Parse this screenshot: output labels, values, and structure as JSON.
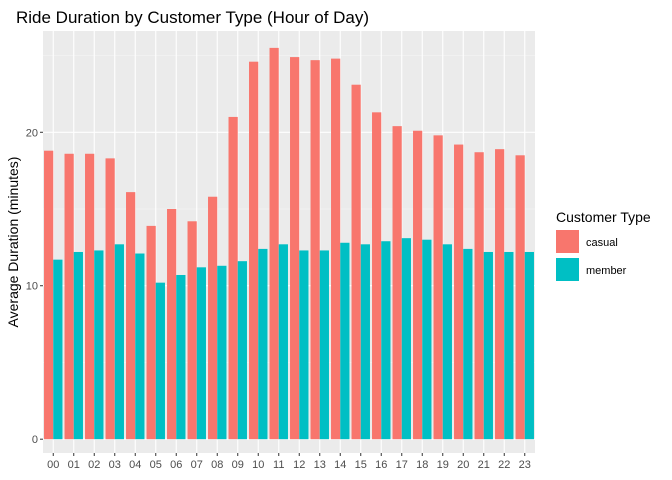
{
  "chart_data": {
    "type": "bar",
    "title": "Ride Duration by Customer Type (Hour of Day)",
    "xlabel": "",
    "ylabel": "Average Duration (minutes)",
    "categories": [
      "00",
      "01",
      "02",
      "03",
      "04",
      "05",
      "06",
      "07",
      "08",
      "09",
      "10",
      "11",
      "12",
      "13",
      "14",
      "15",
      "16",
      "17",
      "18",
      "19",
      "20",
      "21",
      "22",
      "23"
    ],
    "yticks": [
      0,
      10,
      20
    ],
    "ylim": [
      -0.9,
      26.6
    ],
    "grid": true,
    "legend": {
      "title": "Customer Type",
      "position": "right"
    },
    "series": [
      {
        "name": "casual",
        "color": "#F8766D",
        "values": [
          18.8,
          18.6,
          18.6,
          18.3,
          16.1,
          13.9,
          15.0,
          14.2,
          15.8,
          21.0,
          24.6,
          25.5,
          24.9,
          24.7,
          24.8,
          23.1,
          21.3,
          20.4,
          20.1,
          19.8,
          19.2,
          18.7,
          18.9,
          18.5
        ]
      },
      {
        "name": "member",
        "color": "#00BFC4",
        "values": [
          11.7,
          12.2,
          12.3,
          12.7,
          12.1,
          10.2,
          10.7,
          11.2,
          11.3,
          11.6,
          12.4,
          12.7,
          12.3,
          12.3,
          12.8,
          12.7,
          12.9,
          13.1,
          13.0,
          12.7,
          12.4,
          12.2,
          12.2,
          12.2
        ]
      }
    ]
  },
  "colors": {
    "panel": "#EBEBEB",
    "grid_major": "#FFFFFF",
    "grid_minor": "#F5F5F5"
  }
}
